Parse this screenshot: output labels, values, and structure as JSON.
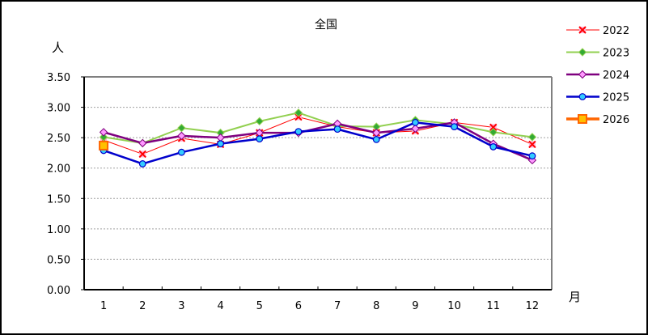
{
  "chart_data": {
    "type": "line",
    "title": "全国",
    "ylabel": "人",
    "xlabel": "月",
    "ylim": [
      0,
      3.5
    ],
    "yticks": [
      "0.00",
      "0.50",
      "1.00",
      "1.50",
      "2.00",
      "2.50",
      "3.00",
      "3.50"
    ],
    "categories": [
      "1",
      "2",
      "3",
      "4",
      "5",
      "6",
      "7",
      "8",
      "9",
      "10",
      "11",
      "12"
    ],
    "grid": true,
    "legend_position": "right",
    "series": [
      {
        "name": "2022",
        "color": "#FF0000",
        "marker": "x",
        "marker_color": "#FF3399",
        "values": [
          2.46,
          2.23,
          2.49,
          2.39,
          2.58,
          2.84,
          2.68,
          2.58,
          2.61,
          2.75,
          2.67,
          2.39
        ]
      },
      {
        "name": "2023",
        "color": "#92D050",
        "marker": "diamond",
        "marker_color": "#33AA33",
        "values": [
          2.51,
          2.41,
          2.66,
          2.58,
          2.77,
          2.91,
          2.69,
          2.68,
          2.79,
          2.72,
          2.59,
          2.51
        ]
      },
      {
        "name": "2024",
        "color": "#7F007F",
        "marker": "diamond",
        "marker_color": "#FF99FF",
        "values": [
          2.59,
          2.41,
          2.53,
          2.5,
          2.58,
          2.58,
          2.73,
          2.58,
          2.65,
          2.75,
          2.4,
          2.13
        ]
      },
      {
        "name": "2025",
        "color": "#0000CC",
        "marker": "circle",
        "marker_color": "#33CCFF",
        "values": [
          2.29,
          2.07,
          2.26,
          2.4,
          2.48,
          2.6,
          2.64,
          2.47,
          2.75,
          2.68,
          2.35,
          2.2
        ]
      },
      {
        "name": "2026",
        "color": "#FF6600",
        "marker": "square",
        "marker_color": "#FFC000",
        "values": [
          2.37
        ]
      }
    ]
  }
}
